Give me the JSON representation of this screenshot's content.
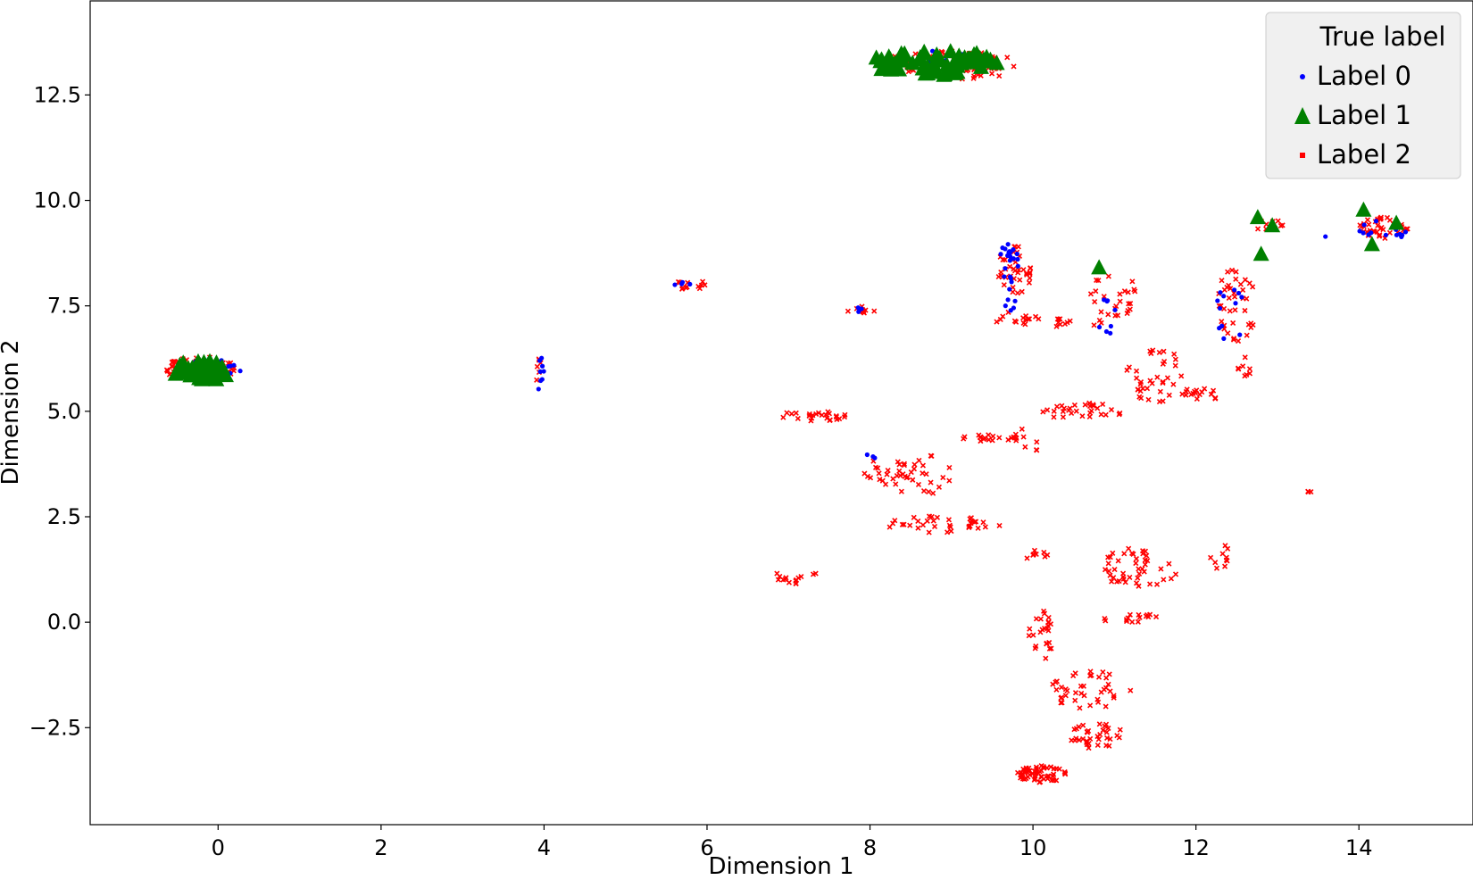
{
  "chart_data": {
    "type": "scatter",
    "title": "",
    "xlabel": "Dimension 1",
    "ylabel": "Dimension 2",
    "xlim": [
      -1.57,
      15.4
    ],
    "ylim": [
      -4.8,
      14.73
    ],
    "xticks": [
      0,
      2,
      4,
      6,
      8,
      10,
      12,
      14
    ],
    "yticks": [
      -2.5,
      0.0,
      2.5,
      5.0,
      7.5,
      10.0,
      12.5
    ],
    "xtick_labels": [
      "0",
      "2",
      "4",
      "6",
      "8",
      "10",
      "12",
      "14"
    ],
    "ytick_labels": [
      "−2.5",
      "0.0",
      "2.5",
      "5.0",
      "7.5",
      "10.0",
      "12.5"
    ],
    "grid": false,
    "legend": {
      "title": "True label",
      "placement": "top-right"
    },
    "series": [
      {
        "name": "Label 0",
        "color": "#0000ff",
        "marker": "point",
        "clusters": [
          {
            "cx": -0.1,
            "cy": 6.0,
            "rx": 0.38,
            "ry": 0.25,
            "n": 20
          },
          {
            "cx": 8.8,
            "cy": 13.3,
            "rx": 0.7,
            "ry": 0.25,
            "n": 12
          },
          {
            "cx": 3.95,
            "cy": 5.9,
            "rx": 0.05,
            "ry": 0.4,
            "n": 8
          },
          {
            "cx": 5.7,
            "cy": 8.0,
            "rx": 0.1,
            "ry": 0.06,
            "n": 4
          },
          {
            "cx": 7.85,
            "cy": 7.4,
            "rx": 0.06,
            "ry": 0.06,
            "n": 4
          },
          {
            "cx": 9.7,
            "cy": 8.4,
            "rx": 0.15,
            "ry": 0.6,
            "n": 22
          },
          {
            "cx": 9.7,
            "cy": 7.5,
            "rx": 0.1,
            "ry": 0.2,
            "n": 5
          },
          {
            "cx": 11.0,
            "cy": 7.2,
            "rx": 0.3,
            "ry": 0.5,
            "n": 8
          },
          {
            "cx": 12.4,
            "cy": 7.3,
            "rx": 0.2,
            "ry": 0.8,
            "n": 12
          },
          {
            "cx": 14.3,
            "cy": 9.3,
            "rx": 0.3,
            "ry": 0.25,
            "n": 14
          },
          {
            "cx": 8.0,
            "cy": 4.0,
            "rx": 0.1,
            "ry": 0.15,
            "n": 3
          },
          {
            "cx": 13.6,
            "cy": 9.15,
            "rx": 0.02,
            "ry": 0.02,
            "n": 1
          }
        ]
      },
      {
        "name": "Label 1",
        "color": "#008000",
        "marker": "triangle",
        "clusters": [
          {
            "cx": -0.2,
            "cy": 5.95,
            "rx": 0.35,
            "ry": 0.25,
            "n": 40
          },
          {
            "cx": 8.8,
            "cy": 13.25,
            "rx": 0.8,
            "ry": 0.3,
            "n": 65
          },
          {
            "cx": 10.8,
            "cy": 8.4,
            "rx": 0.02,
            "ry": 0.02,
            "n": 1
          },
          {
            "cx": 12.75,
            "cy": 9.6,
            "rx": 0.02,
            "ry": 0.02,
            "n": 1
          },
          {
            "cx": 12.95,
            "cy": 9.4,
            "rx": 0.02,
            "ry": 0.02,
            "n": 1
          },
          {
            "cx": 12.8,
            "cy": 8.7,
            "rx": 0.02,
            "ry": 0.02,
            "n": 1
          },
          {
            "cx": 14.05,
            "cy": 9.75,
            "rx": 0.02,
            "ry": 0.02,
            "n": 1
          },
          {
            "cx": 14.15,
            "cy": 8.95,
            "rx": 0.02,
            "ry": 0.02,
            "n": 1
          },
          {
            "cx": 14.45,
            "cy": 9.45,
            "rx": 0.02,
            "ry": 0.02,
            "n": 1
          }
        ]
      },
      {
        "name": "Label 2",
        "color": "#ff0000",
        "marker": "x",
        "clusters": [
          {
            "cx": -0.2,
            "cy": 6.0,
            "rx": 0.45,
            "ry": 0.3,
            "n": 70
          },
          {
            "cx": 9.0,
            "cy": 13.2,
            "rx": 0.9,
            "ry": 0.35,
            "n": 90
          },
          {
            "cx": 3.95,
            "cy": 5.9,
            "rx": 0.05,
            "ry": 0.35,
            "n": 6
          },
          {
            "cx": 5.8,
            "cy": 8.05,
            "rx": 0.2,
            "ry": 0.2,
            "n": 12
          },
          {
            "cx": 7.9,
            "cy": 7.4,
            "rx": 0.2,
            "ry": 0.1,
            "n": 12
          },
          {
            "cx": 9.8,
            "cy": 8.4,
            "rx": 0.25,
            "ry": 0.6,
            "n": 40
          },
          {
            "cx": 9.8,
            "cy": 7.2,
            "rx": 0.3,
            "ry": 0.25,
            "n": 15
          },
          {
            "cx": 10.5,
            "cy": 7.1,
            "rx": 0.5,
            "ry": 0.1,
            "n": 12
          },
          {
            "cx": 11.0,
            "cy": 7.8,
            "rx": 0.3,
            "ry": 0.6,
            "n": 25
          },
          {
            "cx": 11.5,
            "cy": 5.9,
            "rx": 0.35,
            "ry": 0.7,
            "n": 35
          },
          {
            "cx": 12.5,
            "cy": 7.5,
            "rx": 0.25,
            "ry": 0.9,
            "n": 40
          },
          {
            "cx": 12.9,
            "cy": 9.4,
            "rx": 0.2,
            "ry": 0.2,
            "n": 10
          },
          {
            "cx": 14.3,
            "cy": 9.35,
            "rx": 0.3,
            "ry": 0.25,
            "n": 40
          },
          {
            "cx": 12.0,
            "cy": 5.4,
            "rx": 0.35,
            "ry": 0.15,
            "n": 18
          },
          {
            "cx": 10.6,
            "cy": 5.0,
            "rx": 0.5,
            "ry": 0.2,
            "n": 30
          },
          {
            "cx": 7.3,
            "cy": 4.9,
            "rx": 0.45,
            "ry": 0.15,
            "n": 25
          },
          {
            "cx": 9.5,
            "cy": 4.35,
            "rx": 0.4,
            "ry": 0.1,
            "n": 18
          },
          {
            "cx": 8.5,
            "cy": 3.5,
            "rx": 0.6,
            "ry": 0.5,
            "n": 45
          },
          {
            "cx": 8.9,
            "cy": 2.3,
            "rx": 0.7,
            "ry": 0.25,
            "n": 35
          },
          {
            "cx": 7.1,
            "cy": 1.1,
            "rx": 0.3,
            "ry": 0.2,
            "n": 15
          },
          {
            "cx": 10.0,
            "cy": 1.6,
            "rx": 0.2,
            "ry": 0.1,
            "n": 8
          },
          {
            "cx": 11.3,
            "cy": 1.3,
            "rx": 0.5,
            "ry": 0.5,
            "n": 45
          },
          {
            "cx": 12.3,
            "cy": 1.5,
            "rx": 0.15,
            "ry": 0.35,
            "n": 10
          },
          {
            "cx": 10.1,
            "cy": -0.3,
            "rx": 0.2,
            "ry": 0.6,
            "n": 25
          },
          {
            "cx": 11.2,
            "cy": 0.1,
            "rx": 0.4,
            "ry": 0.1,
            "n": 15
          },
          {
            "cx": 10.7,
            "cy": -1.6,
            "rx": 0.5,
            "ry": 0.45,
            "n": 40
          },
          {
            "cx": 10.8,
            "cy": -2.7,
            "rx": 0.35,
            "ry": 0.3,
            "n": 35
          },
          {
            "cx": 10.1,
            "cy": -3.6,
            "rx": 0.3,
            "ry": 0.2,
            "n": 60
          },
          {
            "cx": 13.4,
            "cy": 3.1,
            "rx": 0.03,
            "ry": 0.03,
            "n": 3
          },
          {
            "cx": 9.9,
            "cy": 4.2,
            "rx": 0.2,
            "ry": 0.4,
            "n": 8
          },
          {
            "cx": 12.6,
            "cy": 6.0,
            "rx": 0.1,
            "ry": 0.3,
            "n": 8
          }
        ]
      }
    ]
  }
}
